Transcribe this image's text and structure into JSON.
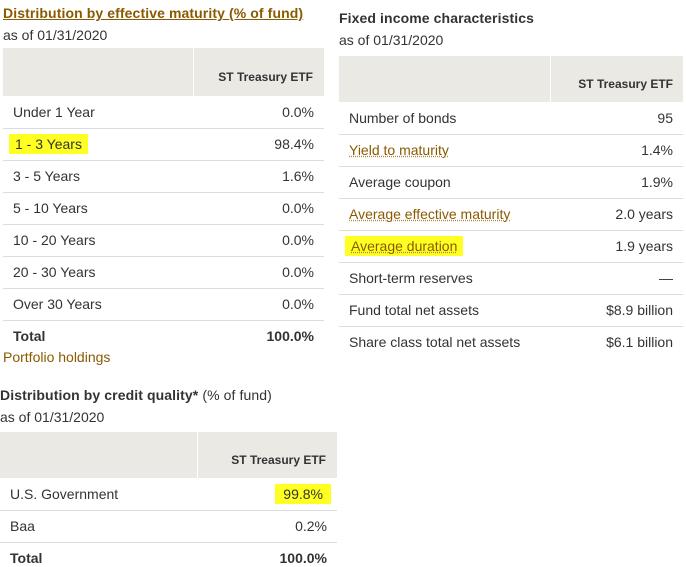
{
  "maturity": {
    "title": "Distribution by effective maturity (% of fund)",
    "asof": "as of 01/31/2020",
    "column_header": "ST Treasury ETF",
    "rows": [
      {
        "label": "Under 1 Year",
        "value": "0.0%"
      },
      {
        "label": "1 - 3 Years",
        "value": "98.4%"
      },
      {
        "label": "3 - 5 Years",
        "value": "1.6%"
      },
      {
        "label": "5 - 10 Years",
        "value": "0.0%"
      },
      {
        "label": "10 - 20 Years",
        "value": "0.0%"
      },
      {
        "label": "20 - 30 Years",
        "value": "0.0%"
      },
      {
        "label": "Over 30 Years",
        "value": "0.0%"
      }
    ],
    "total": {
      "label": "Total",
      "value": "100.0%"
    }
  },
  "portfolio_link": "Portfolio holdings",
  "credit": {
    "title_bold": "Distribution by credit quality*",
    "title_rest": " (% of fund)",
    "asof": "as of 01/31/2020",
    "column_header": "ST Treasury ETF",
    "rows": [
      {
        "label": "U.S. Government",
        "value": "99.8%"
      },
      {
        "label": "Baa",
        "value": "0.2%"
      }
    ],
    "total": {
      "label": "Total",
      "value": "100.0%"
    }
  },
  "characteristics": {
    "title": "Fixed income characteristics",
    "asof": "as of 01/31/2020",
    "column_header": "ST Treasury ETF",
    "rows": [
      {
        "label": "Number of bonds",
        "value": "95"
      },
      {
        "label": "Yield to maturity",
        "value": "1.4%"
      },
      {
        "label": "Average coupon",
        "value": "1.9%"
      },
      {
        "label": "Average effective maturity",
        "value": "2.0 years"
      },
      {
        "label": "Average duration",
        "value": "1.9 years"
      },
      {
        "label": "Short-term reserves",
        "value": "—"
      },
      {
        "label": "Fund total net assets",
        "value": "$8.9 billion"
      },
      {
        "label": "Share class total net assets",
        "value": "$6.1 billion"
      }
    ]
  },
  "colors": {
    "highlight": "#ffff22",
    "link": "#8a5a00",
    "header_bg": "#ebe9e4"
  }
}
